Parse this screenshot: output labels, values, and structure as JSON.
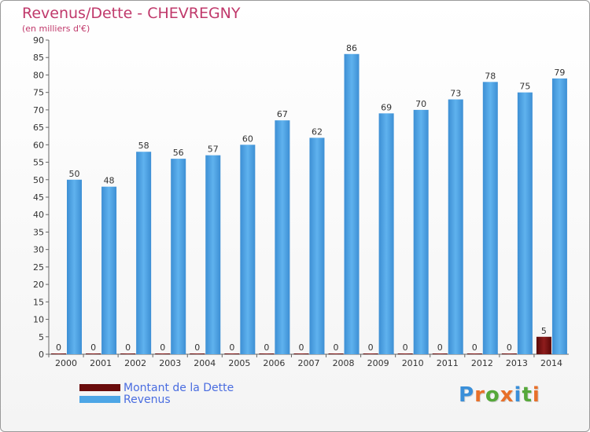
{
  "header": {
    "title": "Revenus/Dette - CHEVREGNY",
    "subtitle": "(en milliers d'€)"
  },
  "chart_data": {
    "type": "bar",
    "categories": [
      "2000",
      "2001",
      "2002",
      "2003",
      "2004",
      "2005",
      "2006",
      "2007",
      "2008",
      "2009",
      "2010",
      "2011",
      "2012",
      "2013",
      "2014"
    ],
    "series": [
      {
        "name": "Montant de la Dette",
        "color": "#7a1010",
        "values": [
          0,
          0,
          0,
          0,
          0,
          0,
          0,
          0,
          0,
          0,
          0,
          0,
          0,
          0,
          5
        ]
      },
      {
        "name": "Revenus",
        "color": "#4da6e6",
        "values": [
          50,
          48,
          58,
          56,
          57,
          60,
          67,
          62,
          86,
          69,
          70,
          73,
          78,
          75,
          79
        ]
      }
    ],
    "ylim": [
      0,
      90
    ],
    "yticks": [
      0,
      5,
      10,
      15,
      20,
      25,
      30,
      35,
      40,
      45,
      50,
      55,
      60,
      65,
      70,
      75,
      80,
      85,
      90
    ],
    "grid": false,
    "legend": "bottom-left"
  },
  "branding": {
    "logo_letters": [
      "P",
      "r",
      "o",
      "x",
      "i",
      "t",
      "i"
    ],
    "logo_colors": [
      "#3a8fd9",
      "#e8702a",
      "#56a83a",
      "#e8702a",
      "#3a8fd9",
      "#56a83a",
      "#e8702a"
    ]
  }
}
